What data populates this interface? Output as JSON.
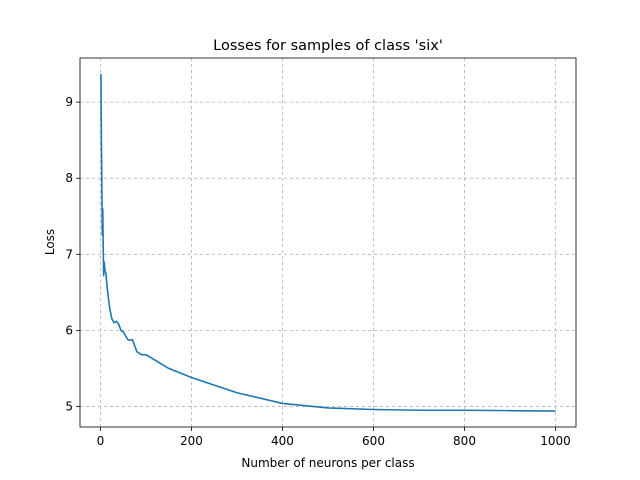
{
  "chart_data": {
    "type": "line",
    "title": "Losses for samples of class 'six'",
    "xlabel": "Number of neurons per class",
    "ylabel": "Loss",
    "xlim": [
      -45,
      1045
    ],
    "ylim": [
      4.73,
      9.58
    ],
    "xticks": [
      0,
      200,
      400,
      600,
      800,
      1000
    ],
    "yticks": [
      5,
      6,
      7,
      8,
      9
    ],
    "grid": true,
    "legend": "none",
    "series": [
      {
        "color": "#1f77b4",
        "x": [
          1,
          2,
          3,
          4,
          5,
          6,
          7,
          8,
          9,
          10,
          12,
          15,
          20,
          25,
          30,
          35,
          40,
          45,
          50,
          55,
          60,
          65,
          70,
          75,
          80,
          85,
          90,
          95,
          100,
          150,
          200,
          300,
          400,
          500,
          600,
          700,
          800,
          900,
          1000
        ],
        "y": [
          9.37,
          8.5,
          7.9,
          7.25,
          7.6,
          7.1,
          6.72,
          6.9,
          6.85,
          6.78,
          6.75,
          6.55,
          6.3,
          6.15,
          6.1,
          6.12,
          6.08,
          6.0,
          5.98,
          5.93,
          5.88,
          5.87,
          5.88,
          5.8,
          5.72,
          5.7,
          5.68,
          5.68,
          5.68,
          5.5,
          5.38,
          5.18,
          5.04,
          4.98,
          4.96,
          4.95,
          4.95,
          4.945,
          4.94
        ]
      }
    ]
  }
}
